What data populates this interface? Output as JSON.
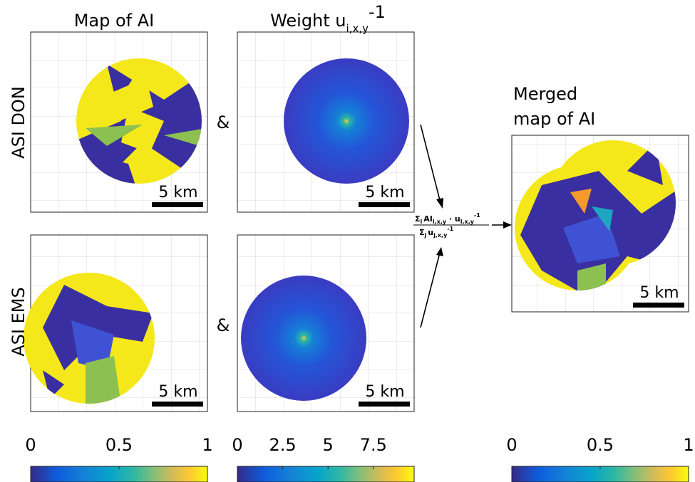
{
  "header": {
    "columns": [
      "Map of AI",
      {
        "text": "Weight u",
        "sub": "i,x,y",
        "sup": "-1"
      }
    ],
    "rows": [
      "ASI DON",
      "ASI EMS"
    ],
    "merged_title": [
      "Merged",
      "map of AI"
    ]
  },
  "ampersand": "&",
  "scale_bar": "5 km",
  "formula": {
    "num": {
      "sigma": "Σ",
      "sigma_sub": "l",
      "ai": "AI",
      "ai_sub": "l,x,y",
      "dot": " · u",
      "u_sub": "l,x,y",
      "u_sup": "-1"
    },
    "den": {
      "sigma": "Σ",
      "sigma_sub": "j",
      "u": "u",
      "u_sub": "j,x,y",
      "u_sup": "-1"
    }
  },
  "colorbars": [
    {
      "lim": [
        0,
        1
      ],
      "ticks": [
        0,
        0.5,
        1
      ]
    },
    {
      "lim": [
        0,
        9.75
      ],
      "ticks": [
        0,
        2.5,
        5,
        7.5
      ]
    },
    {
      "lim": [
        0,
        1
      ],
      "ticks": [
        0,
        0.5,
        1
      ]
    }
  ]
}
